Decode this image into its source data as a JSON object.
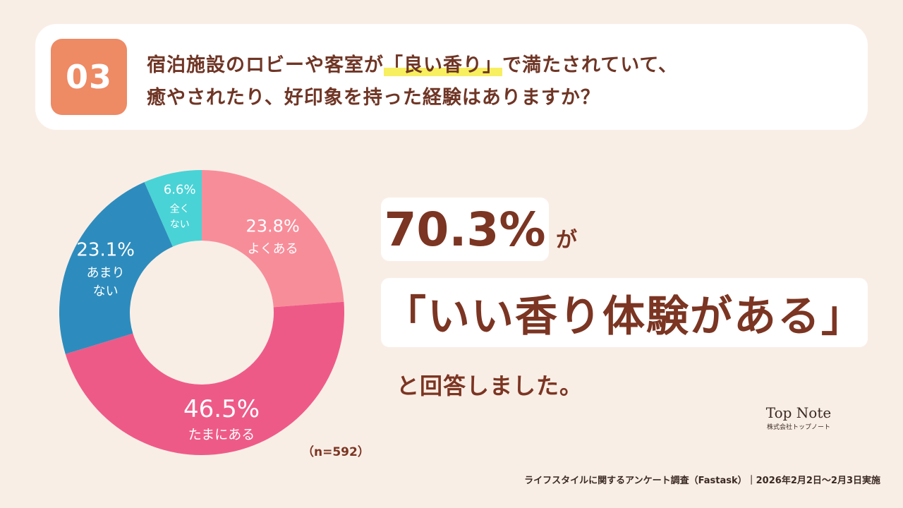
{
  "question": {
    "number": "03",
    "line1_before": "宿泊施設のロビーや客室が",
    "line1_highlight": "「良い香り」",
    "line1_after": "で満たされていて、",
    "line2": "癒やされたり、好印象を持った経験はありますか？"
  },
  "chart_data": {
    "type": "pie",
    "donut": true,
    "start": "12 o'clock, clockwise",
    "slices": [
      {
        "label": "よくある",
        "value": 23.8,
        "value_label": "23.8%",
        "color": "#f88d9a"
      },
      {
        "label": "たまにある",
        "value": 46.5,
        "value_label": "46.5%",
        "color": "#ee5a88"
      },
      {
        "label": "あまりない",
        "value": 23.1,
        "value_label": "23.1%",
        "color": "#2d8cbd"
      },
      {
        "label": "全くない",
        "value": 6.6,
        "value_label": "6.6%",
        "color": "#49d3d6"
      }
    ],
    "sample_size": "（n=592）"
  },
  "headline": {
    "percent": "70.3%",
    "particle": "が",
    "quote": "「いい香り体験がある」",
    "tail": "と回答しました。"
  },
  "logo": {
    "name": "Top Note",
    "sub": "株式会社トップノート"
  },
  "footer": "ライフスタイルに関するアンケート調査（Fastask）｜2026年2月2日〜2月3日実施"
}
